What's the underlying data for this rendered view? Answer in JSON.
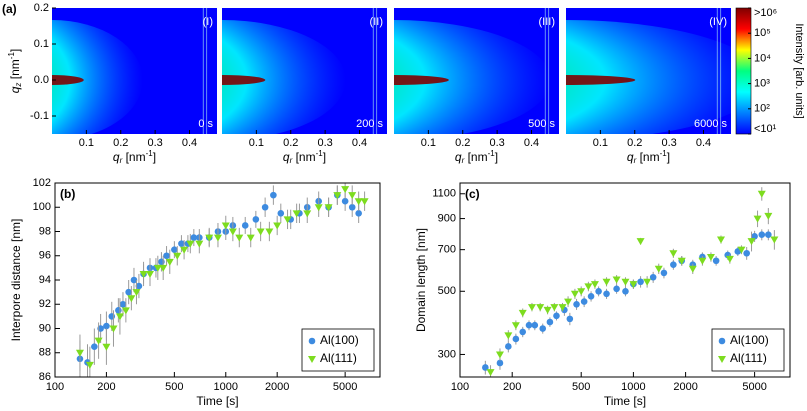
{
  "chart_data": [
    {
      "type": "heatmap",
      "panel_label": "(a)",
      "xlabel": {
        "symbol": "q",
        "sub": "r",
        "unit": " [nm",
        "sup": "-1",
        "end": "]"
      },
      "ylabel": {
        "symbol": "q",
        "sub": "z",
        "unit": " [nm",
        "sup": "-1",
        "end": "]"
      },
      "xlim": [
        0,
        0.48
      ],
      "xticks": [
        0.1,
        0.2,
        0.3,
        0.4
      ],
      "ylim": [
        -0.15,
        0.2
      ],
      "yticks": [
        -0.1,
        {
          "value": 0,
          "label": "0.0"
        },
        0.1,
        0.2
      ],
      "panels": [
        {
          "label": "(I)",
          "time": "0 s"
        },
        {
          "label": "(II)",
          "time": "200 s"
        },
        {
          "label": "(III)",
          "time": "500 s"
        },
        {
          "label": "(IV)",
          "time": "6000 s"
        }
      ],
      "colorbar": {
        "label": "Intensity [arb. units]",
        "scale": "log",
        "lim": [
          1,
          6
        ],
        "ticks": [
          {
            "value": 6,
            "label": ">10⁶"
          },
          {
            "value": 5,
            "label": "10⁵"
          },
          {
            "value": 4,
            "label": "10⁴"
          },
          {
            "value": 3,
            "label": "10³"
          },
          {
            "value": 2,
            "label": "10²"
          },
          {
            "value": 1,
            "label": "<10¹"
          }
        ],
        "colors": [
          "#7f0000",
          "#ff0000",
          "#ffff00",
          "#00ff80",
          "#00ffff",
          "#0080ff",
          "#0000ff"
        ]
      }
    },
    {
      "type": "scatter",
      "panel_label": "(b)",
      "xlabel": "Time [s]",
      "ylabel": "Interpore distance [nm]",
      "xscale": "log",
      "xlim": [
        100,
        8000
      ],
      "xticks": [
        100,
        200,
        500,
        1000,
        2000,
        5000
      ],
      "ylim": [
        86,
        102
      ],
      "yticks": [
        86,
        88,
        90,
        92,
        94,
        96,
        98,
        100,
        102
      ],
      "legend": "lower right",
      "series": [
        {
          "name": "Al(100)",
          "color": "#3d8be0",
          "marker": "circle",
          "x": [
            140,
            155,
            170,
            185,
            200,
            215,
            235,
            250,
            270,
            290,
            310,
            330,
            360,
            390,
            420,
            450,
            500,
            550,
            600,
            650,
            700,
            800,
            900,
            1000,
            1100,
            1300,
            1500,
            1700,
            1900,
            2100,
            2400,
            2700,
            3000,
            3500,
            4000,
            4500,
            5000,
            5500,
            6000
          ],
          "values": [
            87.5,
            87.2,
            88.5,
            90,
            90.2,
            91,
            91.5,
            92,
            93,
            94,
            93.5,
            94.5,
            95,
            95,
            95.5,
            96,
            96.5,
            97,
            97,
            97.5,
            97.5,
            97.5,
            98,
            98,
            98.5,
            98.5,
            99,
            100,
            101,
            99.5,
            99,
            99.5,
            100,
            100.5,
            100,
            101,
            100.5,
            100,
            99.5
          ],
          "errors": [
            1.5,
            1.5,
            1.5,
            1.2,
            1.2,
            1.2,
            1,
            1,
            1,
            1,
            1,
            0.8,
            0.8,
            0.8,
            0.8,
            0.8,
            0.7,
            0.7,
            0.7,
            0.7,
            0.7,
            0.7,
            0.7,
            0.7,
            0.7,
            0.7,
            0.7,
            0.8,
            0.8,
            0.8,
            0.8,
            0.8,
            0.8,
            0.8,
            0.8,
            0.8,
            0.8,
            0.8,
            0.8
          ]
        },
        {
          "name": "Al(111)",
          "color": "#7ddc1f",
          "marker": "triangle",
          "x": [
            140,
            160,
            180,
            200,
            220,
            240,
            260,
            280,
            300,
            330,
            360,
            400,
            430,
            470,
            520,
            570,
            620,
            700,
            800,
            900,
            1000,
            1100,
            1200,
            1400,
            1600,
            1800,
            2000,
            2300,
            2600,
            3000,
            3500,
            4000,
            4500,
            5000,
            5500,
            6000,
            6500
          ],
          "values": [
            88,
            87,
            89,
            88.5,
            90,
            91,
            91.5,
            92.5,
            93,
            94.5,
            94.5,
            95,
            95,
            95.5,
            96,
            96.5,
            97,
            97,
            97.5,
            97.5,
            98.5,
            98,
            97.5,
            97.5,
            98,
            98,
            98.5,
            99,
            99.5,
            99.5,
            100,
            100,
            101,
            101.5,
            101,
            100.5,
            100.5
          ],
          "errors": [
            1.5,
            1.5,
            1.5,
            1.5,
            1.5,
            1.5,
            1,
            1,
            1,
            1,
            1,
            1,
            1,
            1,
            0.8,
            0.8,
            0.8,
            0.8,
            0.8,
            0.8,
            0.8,
            0.8,
            0.8,
            0.8,
            0.8,
            0.8,
            0.8,
            0.8,
            0.8,
            0.8,
            0.8,
            0.8,
            0.8,
            0.8,
            0.8,
            0.8,
            0.8
          ]
        }
      ]
    },
    {
      "type": "scatter",
      "panel_label": "(c)",
      "xlabel": "Time [s]",
      "ylabel": "Domain length [nm]",
      "xscale": "log",
      "xlim": [
        100,
        8000
      ],
      "xticks": [
        100,
        200,
        500,
        1000,
        2000,
        5000
      ],
      "yscale": "log",
      "ylim": [
        250,
        1200
      ],
      "yticks": [
        300,
        500,
        700,
        900,
        1100
      ],
      "legend": "lower right",
      "series": [
        {
          "name": "Al(100)",
          "color": "#3d8be0",
          "marker": "circle",
          "x": [
            140,
            170,
            190,
            210,
            230,
            250,
            270,
            300,
            330,
            360,
            400,
            430,
            470,
            520,
            570,
            630,
            700,
            800,
            900,
            1000,
            1100,
            1300,
            1500,
            1700,
            1900,
            2200,
            2500,
            3000,
            3500,
            4000,
            4500,
            5000,
            5500,
            6000
          ],
          "values": [
            270,
            280,
            320,
            340,
            360,
            380,
            380,
            370,
            390,
            410,
            430,
            400,
            450,
            460,
            480,
            500,
            490,
            510,
            500,
            530,
            540,
            560,
            580,
            620,
            640,
            620,
            660,
            640,
            670,
            690,
            680,
            780,
            790,
            790
          ],
          "errors": [
            15,
            15,
            15,
            15,
            15,
            15,
            15,
            15,
            15,
            15,
            20,
            20,
            20,
            20,
            20,
            20,
            20,
            20,
            20,
            20,
            25,
            25,
            25,
            25,
            25,
            25,
            25,
            25,
            25,
            25,
            35,
            35,
            35,
            35
          ]
        },
        {
          "name": "Al(111)",
          "color": "#7ddc1f",
          "marker": "triangle",
          "x": [
            150,
            170,
            190,
            210,
            230,
            260,
            290,
            320,
            350,
            390,
            420,
            460,
            500,
            550,
            600,
            700,
            800,
            900,
            1000,
            1100,
            1200,
            1400,
            1700,
            1900,
            2200,
            2500,
            2800,
            3200,
            3600,
            4200,
            4800,
            5200,
            5500,
            6000,
            6500
          ],
          "values": [
            260,
            300,
            350,
            380,
            420,
            440,
            440,
            430,
            440,
            440,
            460,
            490,
            500,
            520,
            530,
            540,
            550,
            540,
            530,
            750,
            540,
            600,
            680,
            640,
            600,
            640,
            660,
            760,
            650,
            700,
            750,
            900,
            1100,
            920,
            760
          ],
          "errors": [
            15,
            15,
            15,
            15,
            15,
            15,
            15,
            15,
            15,
            15,
            20,
            20,
            20,
            20,
            20,
            20,
            20,
            20,
            20,
            20,
            25,
            25,
            25,
            25,
            25,
            25,
            25,
            25,
            25,
            25,
            60,
            60,
            60,
            60,
            60
          ]
        }
      ]
    }
  ]
}
